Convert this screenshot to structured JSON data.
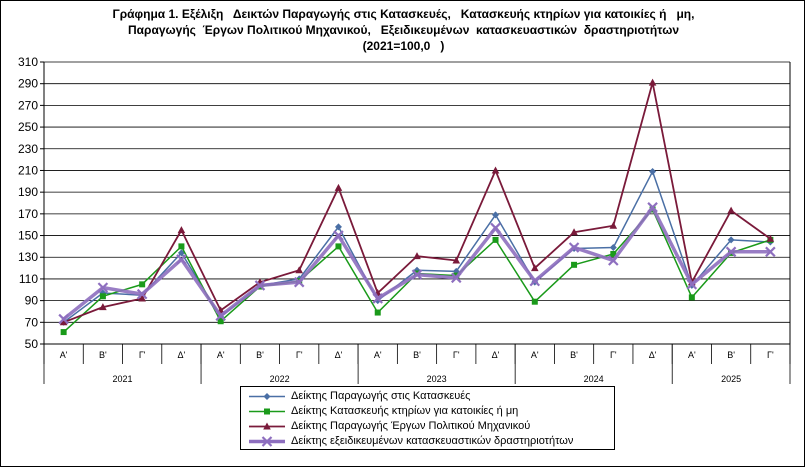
{
  "title_lines": [
    "Γράφημα 1. Εξέλιξη   Δεικτών Παραγωγής στις Κατασκευές,   Κατασκευής κτηρίων για κατοικίες ή   μη,",
    "Παραγωγής  Έργων Πολιτικού Μηχανικού,   Εξειδικευμένων  κατασκευαστικών  δραστηριοτήτων",
    "(2021=100,0   )"
  ],
  "chart_data": {
    "type": "line",
    "title": "Γράφημα 1. Εξέλιξη Δεικτών Παραγωγής στις Κατασκευές, Κατασκευής κτηρίων για κατοικίες ή μη, Παραγωγής Έργων Πολιτικού Μηχανικού, Εξειδικευμένων κατασκευαστικών δραστηριοτήτων (2021=100,0)",
    "xlabel": "",
    "ylabel": "",
    "ylim": [
      50,
      310
    ],
    "yticks": [
      50,
      70,
      90,
      110,
      130,
      150,
      170,
      190,
      210,
      230,
      250,
      270,
      290,
      310
    ],
    "grid": true,
    "legend_position": "bottom",
    "categories": [
      "Α'",
      "Β'",
      "Γ'",
      "Δ'",
      "Α'",
      "Β'",
      "Γ'",
      "Δ'",
      "Α'",
      "Β'",
      "Γ'",
      "Δ'",
      "Α'",
      "Β'",
      "Γ'",
      "Δ'",
      "Α'",
      "Β'",
      "Γ'"
    ],
    "years": [
      {
        "label": "2021",
        "count": 4
      },
      {
        "label": "2022",
        "count": 4
      },
      {
        "label": "2023",
        "count": 4
      },
      {
        "label": "2024",
        "count": 4
      },
      {
        "label": "2025",
        "count": 3
      }
    ],
    "series": [
      {
        "name": "Δείκτης Παραγωγής στις Κατασκευές",
        "color": "#4a6fa5",
        "marker": "diamond",
        "values": [
          70,
          97,
          95,
          134,
          75,
          104,
          110,
          158,
          90,
          118,
          117,
          169,
          107,
          138,
          139,
          209,
          104,
          146,
          144
        ]
      },
      {
        "name": "Δείκτης Κατασκευής κτηρίων για κατοικίες ή μη",
        "color": "#1a9a1a",
        "marker": "square",
        "values": [
          61,
          94,
          105,
          140,
          71,
          103,
          108,
          140,
          79,
          115,
          113,
          146,
          89,
          123,
          133,
          174,
          93,
          134,
          146
        ]
      },
      {
        "name": "Δείκτης Παραγωγής Έργων Πολιτικού Μηχανικού",
        "color": "#7a1a3a",
        "marker": "triangle",
        "values": [
          70,
          84,
          92,
          155,
          81,
          107,
          118,
          194,
          97,
          131,
          127,
          210,
          120,
          153,
          159,
          291,
          107,
          173,
          147
        ]
      },
      {
        "name": "Δείκτης εξειδικευμένων κατασκευαστικών δραστηριοτήτων",
        "color": "#8e6fbf",
        "marker": "x",
        "values": [
          73,
          102,
          96,
          128,
          76,
          104,
          107,
          150,
          92,
          114,
          111,
          157,
          108,
          139,
          127,
          176,
          105,
          135,
          135
        ]
      }
    ]
  }
}
